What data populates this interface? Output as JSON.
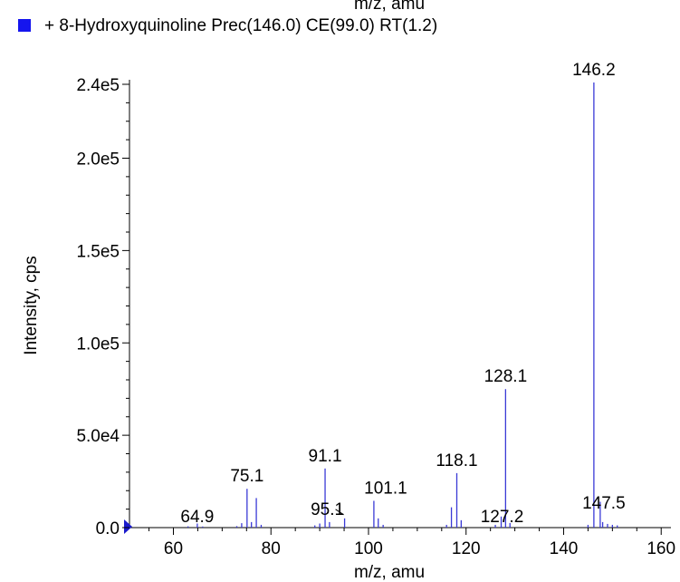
{
  "header": {
    "clipped_text": "m/z, amu",
    "legend_label": "+ 8-Hydroxyquinoline Prec(146.0) CE(99.0) RT(1.2)"
  },
  "colors": {
    "series": "#3a3ad6",
    "legend_swatch": "#1515ee",
    "axis": "#000000"
  },
  "chart_data": {
    "type": "bar",
    "xlabel": "m/z, amu",
    "ylabel": "Intensity, cps",
    "xlim": [
      51,
      162
    ],
    "ylim": [
      0,
      240000
    ],
    "x_ticks": [
      {
        "value": 60,
        "label": "60"
      },
      {
        "value": 80,
        "label": "80"
      },
      {
        "value": 100,
        "label": "100"
      },
      {
        "value": 120,
        "label": "120"
      },
      {
        "value": 140,
        "label": "140"
      },
      {
        "value": 160,
        "label": "160"
      }
    ],
    "y_ticks": [
      {
        "value": 0,
        "label": "0.0"
      },
      {
        "value": 50000,
        "label": "5.0e4"
      },
      {
        "value": 100000,
        "label": "1.0e5"
      },
      {
        "value": 150000,
        "label": "1.5e5"
      },
      {
        "value": 200000,
        "label": "2.0e5"
      },
      {
        "value": 240000,
        "label": "2.4e5"
      }
    ],
    "series": [
      {
        "peaks": [
          {
            "x": 63.0,
            "y": 700
          },
          {
            "x": 64.9,
            "y": 2200
          },
          {
            "x": 66.0,
            "y": 600
          },
          {
            "x": 73.0,
            "y": 800
          },
          {
            "x": 74.0,
            "y": 2400
          },
          {
            "x": 75.1,
            "y": 21000
          },
          {
            "x": 76.0,
            "y": 3000
          },
          {
            "x": 77.0,
            "y": 16000
          },
          {
            "x": 78.0,
            "y": 1500
          },
          {
            "x": 89.0,
            "y": 1200
          },
          {
            "x": 90.0,
            "y": 2200
          },
          {
            "x": 91.1,
            "y": 32000
          },
          {
            "x": 92.0,
            "y": 3000
          },
          {
            "x": 95.1,
            "y": 5000
          },
          {
            "x": 101.1,
            "y": 14500
          },
          {
            "x": 102.0,
            "y": 5000
          },
          {
            "x": 103.0,
            "y": 1500
          },
          {
            "x": 116.0,
            "y": 1500
          },
          {
            "x": 117.0,
            "y": 11000
          },
          {
            "x": 118.1,
            "y": 29500
          },
          {
            "x": 119.0,
            "y": 4000
          },
          {
            "x": 126.0,
            "y": 1500
          },
          {
            "x": 127.2,
            "y": 6000
          },
          {
            "x": 128.1,
            "y": 75000
          },
          {
            "x": 129.0,
            "y": 2500
          },
          {
            "x": 145.0,
            "y": 1500
          },
          {
            "x": 146.2,
            "y": 241000
          },
          {
            "x": 147.5,
            "y": 14000
          },
          {
            "x": 148.0,
            "y": 3000
          },
          {
            "x": 149.0,
            "y": 2000
          },
          {
            "x": 150.0,
            "y": 1500
          },
          {
            "x": 151.0,
            "y": 1200
          }
        ]
      }
    ],
    "annotations": [
      {
        "x": 146.2,
        "y": 241000,
        "text": "146.2"
      },
      {
        "x": 128.1,
        "y": 75000,
        "text": "128.1"
      },
      {
        "x": 118.1,
        "y": 29500,
        "text": "118.1"
      },
      {
        "x": 101.1,
        "y": 14500,
        "text": "101.1"
      },
      {
        "x": 95.1,
        "y": 5000,
        "text": "95.1"
      },
      {
        "x": 91.1,
        "y": 32000,
        "text": "91.1"
      },
      {
        "x": 75.1,
        "y": 21000,
        "text": "75.1"
      },
      {
        "x": 64.9,
        "y": 2200,
        "text": "64.9"
      },
      {
        "x": 127.2,
        "y": 6000,
        "text": "127.2"
      },
      {
        "x": 147.5,
        "y": 14000,
        "text": "147.5"
      }
    ]
  }
}
